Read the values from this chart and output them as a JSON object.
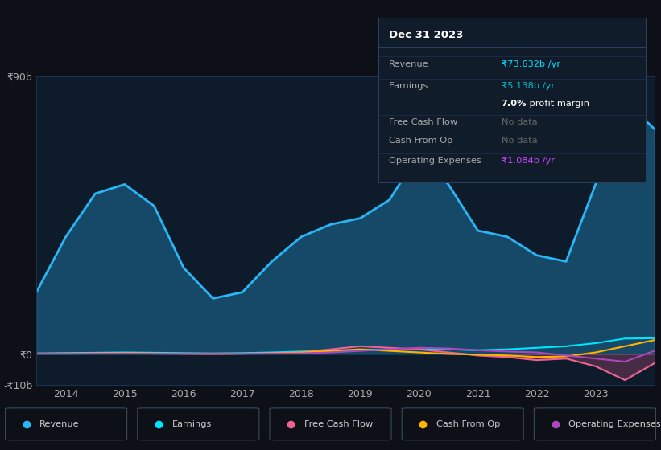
{
  "bg_color": "#0d1117",
  "plot_bg_color": "#0d1b2a",
  "grid_color": "#1e3050",
  "title_box_date": "Dec 31 2023",
  "years": [
    2013.5,
    2014.0,
    2014.5,
    2015.0,
    2015.5,
    2016.0,
    2016.5,
    2017.0,
    2017.5,
    2018.0,
    2018.5,
    2019.0,
    2019.5,
    2020.0,
    2020.5,
    2021.0,
    2021.5,
    2022.0,
    2022.5,
    2023.0,
    2023.5,
    2024.0
  ],
  "revenue": [
    20,
    38,
    52,
    55,
    48,
    28,
    18,
    20,
    30,
    38,
    42,
    44,
    50,
    65,
    55,
    40,
    38,
    32,
    30,
    55,
    82,
    73
  ],
  "earnings": [
    0.2,
    0.3,
    0.4,
    0.5,
    0.4,
    0.3,
    0.2,
    0.3,
    0.5,
    0.8,
    1.0,
    1.2,
    1.5,
    1.8,
    1.5,
    1.2,
    1.5,
    2.0,
    2.5,
    3.5,
    5.0,
    5.1
  ],
  "free_cash_flow": [
    0.1,
    0.1,
    0.15,
    0.2,
    0.1,
    0.05,
    0.0,
    0.1,
    0.2,
    0.5,
    1.5,
    2.5,
    2.0,
    1.5,
    0.5,
    -0.5,
    -1.0,
    -2.0,
    -1.5,
    -4.0,
    -8.5,
    -3.0
  ],
  "cash_from_op": [
    0.1,
    0.15,
    0.2,
    0.25,
    0.2,
    0.1,
    0.05,
    0.1,
    0.2,
    0.5,
    1.0,
    1.5,
    1.0,
    0.5,
    0.0,
    -0.2,
    -0.5,
    -1.0,
    -0.8,
    0.5,
    2.5,
    4.5
  ],
  "operating_expenses": [
    0.05,
    0.05,
    0.08,
    0.1,
    0.08,
    0.05,
    0.03,
    0.05,
    0.1,
    0.2,
    0.5,
    1.0,
    1.5,
    2.0,
    1.8,
    1.2,
    0.8,
    0.5,
    -0.5,
    -1.5,
    -2.5,
    1.0
  ],
  "revenue_color": "#29b6f6",
  "earnings_color": "#00e5ff",
  "free_cash_flow_color": "#f06292",
  "cash_from_op_color": "#ffb300",
  "operating_expenses_color": "#ab47bc",
  "ylim_top": 90,
  "ylim_bottom": -10,
  "y_ticks_labels": [
    "₹90b",
    "₹0",
    "-₹10b"
  ],
  "y_ticks_values": [
    90,
    0,
    -10
  ],
  "x_ticks": [
    2014,
    2015,
    2016,
    2017,
    2018,
    2019,
    2020,
    2021,
    2022,
    2023
  ],
  "legend_items": [
    {
      "label": "Revenue",
      "color": "#29b6f6"
    },
    {
      "label": "Earnings",
      "color": "#00e5ff"
    },
    {
      "label": "Free Cash Flow",
      "color": "#f06292"
    },
    {
      "label": "Cash From Op",
      "color": "#ffb300"
    },
    {
      "label": "Operating Expenses",
      "color": "#ab47bc"
    }
  ],
  "info_rows": [
    {
      "label": "Revenue",
      "value": "₹73.632b /yr",
      "value_color": "#00e5ff",
      "bold_prefix": ""
    },
    {
      "label": "Earnings",
      "value": "₹5.138b /yr",
      "value_color": "#00bcd4",
      "bold_prefix": ""
    },
    {
      "label": "",
      "value": "profit margin",
      "value_color": "#ffffff",
      "bold_prefix": "7.0%"
    },
    {
      "label": "Free Cash Flow",
      "value": "No data",
      "value_color": "#666666",
      "bold_prefix": ""
    },
    {
      "label": "Cash From Op",
      "value": "No data",
      "value_color": "#666666",
      "bold_prefix": ""
    },
    {
      "label": "Operating Expenses",
      "value": "₹1.084b /yr",
      "value_color": "#cc44ff",
      "bold_prefix": ""
    }
  ]
}
